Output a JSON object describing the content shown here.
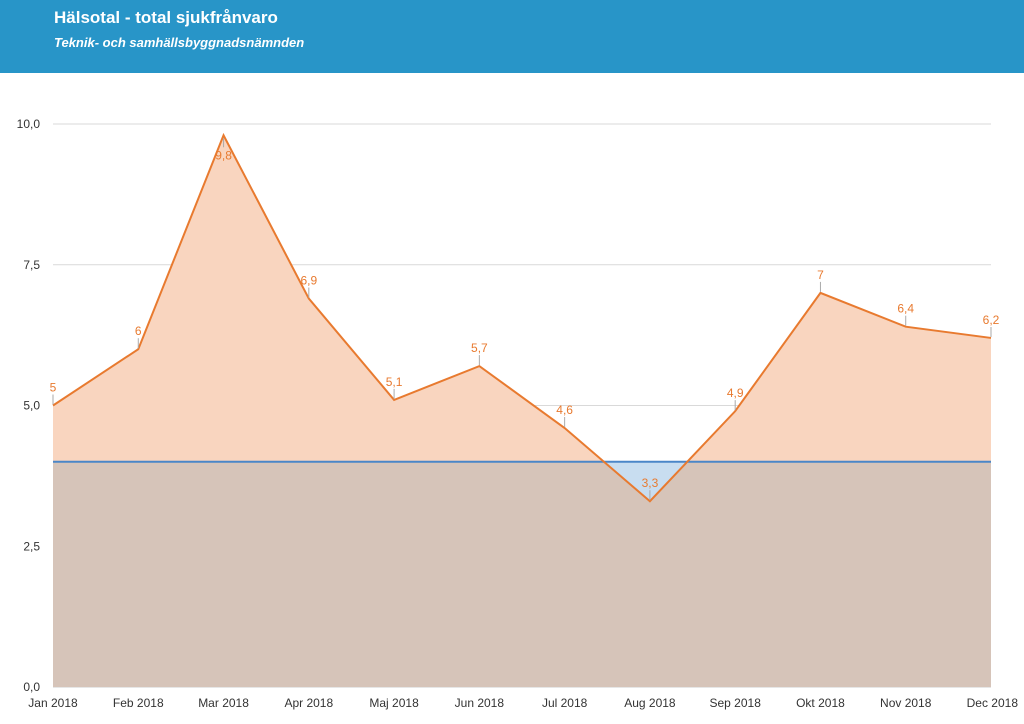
{
  "header": {
    "title": "Hälsotal - total sjukfrånvaro",
    "subtitle": "Teknik- och samhällsbyggnadsnämnden",
    "background_color": "#2895c8"
  },
  "chart_data": {
    "type": "area",
    "categories": [
      "Jan 2018",
      "Feb 2018",
      "Mar 2018",
      "Apr 2018",
      "Maj 2018",
      "Jun 2018",
      "Jul 2018",
      "Aug 2018",
      "Sep 2018",
      "Okt 2018",
      "Nov 2018",
      "Dec 2018"
    ],
    "series": [
      {
        "values": [
          5,
          6,
          9.8,
          6.9,
          5.1,
          5.7,
          4.6,
          3.3,
          4.9,
          7,
          6.4,
          6.2
        ],
        "data_labels": [
          "5",
          "6",
          "9,8",
          "6,9",
          "5,1",
          "5,7",
          "4,6",
          "3,3",
          "4,9",
          "7",
          "6,4",
          "6,2"
        ],
        "color": "#e87a2f",
        "fill_color": "#f9d5bf"
      },
      {
        "values": [
          4,
          4,
          4,
          4,
          4,
          4,
          4,
          4,
          4,
          4,
          4,
          4
        ],
        "color": "#4a86c8",
        "fill_color": "#c8ddf0"
      }
    ],
    "overlap_color": "#d6c4b9",
    "y_ticks": [
      0,
      2.5,
      5,
      7.5,
      10
    ],
    "y_tick_labels": [
      "0,0",
      "2,5",
      "5,0",
      "7,5",
      "10,0"
    ],
    "ylim": [
      0,
      10
    ],
    "grid": true,
    "legend": "none"
  }
}
